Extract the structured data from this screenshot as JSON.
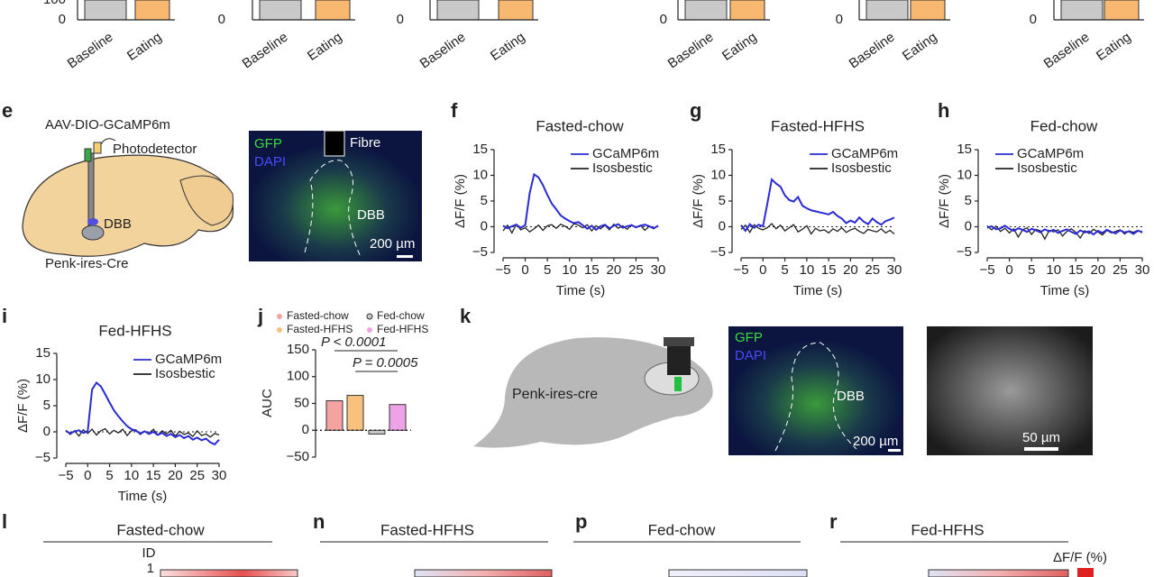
{
  "top_row": {
    "tick_zero": "0",
    "tick_top": "100",
    "categories": [
      "Baseline",
      "Eating"
    ]
  },
  "panel_e": {
    "letter": "e",
    "virus": "AAV-DIO-GCaMP6m",
    "detector": "Photodetector",
    "region": "DBB",
    "mouse": "Penk-ires-Cre",
    "image": {
      "gfp": "GFP",
      "dapi": "DAPI",
      "fibre": "Fibre",
      "region": "DBB",
      "scale": "200 µm"
    }
  },
  "trace_axes": {
    "ylabel": "ΔF/F (%)",
    "xlabel": "Time (s)",
    "xlim": [
      -5,
      30
    ],
    "ylim": [
      -5,
      15
    ],
    "xticks": [
      {
        "value": -5,
        "label": "−5"
      },
      0,
      5,
      10,
      15,
      20,
      25,
      30
    ],
    "yticks": [
      15,
      10,
      5,
      0,
      {
        "value": -5,
        "label": "−5"
      }
    ],
    "x": [
      -5,
      -4,
      -3,
      -2,
      -1,
      0,
      1,
      2,
      3,
      4,
      5,
      6,
      7,
      8,
      9,
      10,
      11,
      12,
      13,
      14,
      15,
      16,
      17,
      18,
      19,
      20,
      21,
      22,
      23,
      24,
      25,
      26,
      27,
      28,
      29,
      30
    ]
  },
  "traces": [
    {
      "letter": "f",
      "title": "Fasted-chow",
      "series": [
        {
          "name": "GCaMP6m",
          "color": "#2b2bd6",
          "values": [
            0.2,
            -0.3,
            0.1,
            0.4,
            -0.2,
            0.3,
            6.5,
            10.2,
            9.6,
            8.1,
            6.2,
            4.5,
            3.4,
            2.2,
            1.6,
            1.1,
            0.7,
            0.9,
            0.3,
            -0.4,
            0.2,
            -0.6,
            0.1,
            0.4,
            -0.3,
            0.2,
            0.5,
            -0.2,
            0.1,
            0.3,
            -0.1,
            0.2,
            0.4,
            0.1,
            -0.3,
            0.2
          ]
        },
        {
          "name": "Isosbestic",
          "color": "#222222",
          "values": [
            -0.8,
            0.3,
            -1.2,
            0.5,
            -0.6,
            -0.2,
            -1.0,
            -0.4,
            0.3,
            -0.7,
            0.2,
            0.4,
            -0.3,
            0.5,
            0.1,
            -0.5,
            0.6,
            0.3,
            -0.2,
            0.4,
            -0.8,
            0.2,
            -0.4,
            0.3,
            -0.6,
            0.5,
            -0.3,
            0.2,
            -0.5,
            0.4,
            -0.2,
            0.3,
            -0.7,
            0.1,
            -0.4,
            0.2
          ]
        }
      ]
    },
    {
      "letter": "g",
      "title": "Fasted-HFHS",
      "series": [
        {
          "name": "GCaMP6m",
          "color": "#2b2bd6",
          "values": [
            0.3,
            -0.8,
            0.5,
            -0.2,
            0.4,
            0.1,
            4.5,
            9.2,
            8.4,
            7.8,
            6.1,
            5.2,
            4.9,
            5.8,
            4.1,
            3.6,
            3.2,
            3.0,
            2.8,
            2.6,
            2.4,
            2.9,
            2.1,
            1.6,
            0.7,
            1.2,
            0.8,
            1.8,
            1.0,
            0.5,
            1.6,
            0.9,
            0.4,
            1.1,
            1.4,
            1.8
          ]
        },
        {
          "name": "Isosbestic",
          "color": "#222222",
          "values": [
            -0.5,
            0.3,
            -1.1,
            0.4,
            -0.3,
            -0.6,
            -0.2,
            0.6,
            -0.4,
            0.3,
            -0.8,
            -0.2,
            0.4,
            -1.0,
            -0.5,
            0.2,
            -1.4,
            -0.3,
            -0.8,
            -0.6,
            -1.2,
            -0.4,
            -0.9,
            -0.2,
            -1.1,
            -0.6,
            -0.3,
            -0.9,
            -1.3,
            -0.5,
            -0.8,
            -1.0,
            -0.4,
            -1.2,
            -0.7,
            -1.4
          ]
        }
      ]
    },
    {
      "letter": "h",
      "title": "Fed-chow",
      "series": [
        {
          "name": "GCaMP6m",
          "color": "#2b2bd6",
          "values": [
            -0.2,
            0.1,
            -0.5,
            -0.3,
            0.2,
            -0.4,
            -0.8,
            -0.3,
            -0.6,
            -1.0,
            -0.4,
            -0.7,
            -1.1,
            -0.5,
            -0.9,
            -0.6,
            -1.2,
            -0.8,
            -0.5,
            -1.0,
            -1.4,
            -0.7,
            -1.1,
            -0.9,
            -1.5,
            -0.8,
            -1.2,
            -0.6,
            -1.0,
            -1.3,
            -0.7,
            -1.1,
            -0.9,
            -1.4,
            -0.8,
            -1.0
          ]
        },
        {
          "name": "Isosbestic",
          "color": "#222222",
          "values": [
            0.2,
            -0.6,
            0.1,
            -0.9,
            -0.3,
            -1.2,
            -0.4,
            -2.0,
            -0.6,
            -0.2,
            -1.5,
            -0.5,
            -0.8,
            -2.4,
            -0.7,
            -1.0,
            -0.6,
            -1.8,
            -0.9,
            -0.4,
            -1.1,
            -2.2,
            -0.8,
            -1.3,
            -0.5,
            -1.0,
            -1.6,
            -0.7,
            -1.2,
            -0.9,
            -0.6,
            -1.4,
            -0.8,
            -1.1,
            -0.7,
            -1.2
          ]
        }
      ]
    },
    {
      "letter": "i",
      "title": "Fed-HFHS",
      "series": [
        {
          "name": "GCaMP6m",
          "color": "#2b2bd6",
          "values": [
            0.2,
            -0.3,
            0.1,
            0.3,
            -0.2,
            0.1,
            8.1,
            9.4,
            8.7,
            7.2,
            5.6,
            4.1,
            3.0,
            2.0,
            1.1,
            0.5,
            0.2,
            -0.3,
            0.1,
            -0.4,
            0.0,
            -0.6,
            -0.2,
            -0.8,
            -0.4,
            -1.0,
            -0.6,
            -1.2,
            -0.8,
            -1.5,
            -1.1,
            -1.6,
            -1.3,
            -2.0,
            -2.4,
            -1.5
          ]
        },
        {
          "name": "Isosbestic",
          "color": "#222222",
          "values": [
            0.3,
            -0.5,
            0.2,
            -0.8,
            0.4,
            -0.3,
            0.5,
            -0.6,
            0.2,
            0.6,
            -0.4,
            0.3,
            -0.2,
            0.5,
            -0.7,
            0.2,
            0.4,
            -0.5,
            0.1,
            -0.3,
            0.5,
            -0.6,
            0.2,
            -0.4,
            0.3,
            -0.8,
            0.1,
            -0.5,
            -0.2,
            -0.9,
            0.2,
            -0.7,
            -0.4,
            -1.0,
            -0.3,
            -0.6
          ]
        }
      ]
    }
  ],
  "panel_j": {
    "letter": "j",
    "ylabel": "AUC",
    "ylim": [
      -50,
      150
    ],
    "yticks": [
      150,
      100,
      50,
      0,
      {
        "value": -50,
        "label": "−50"
      }
    ],
    "names": [
      "Fasted-chow",
      "Fasted-HFHS",
      "Fed-chow",
      "Fed-HFHS"
    ],
    "colors": [
      "#f4a3a0",
      "#f8c17e",
      "#c9c9c9",
      "#eea3e6"
    ],
    "values": [
      55,
      65,
      -7,
      48
    ],
    "annotations": [
      "P < 0.0001",
      "P = 0.0005"
    ]
  },
  "panel_k": {
    "letter": "k",
    "mouse": "Penk-ires-cre",
    "image": {
      "gfp": "GFP",
      "dapi": "DAPI",
      "region": "DBB",
      "scale": "200 µm"
    },
    "image2_scale": "50 µm"
  },
  "heatmaps": [
    {
      "letter": "l",
      "title": "Fasted-chow"
    },
    {
      "letter": "n",
      "title": "Fasted-HFHS"
    },
    {
      "letter": "p",
      "title": "Fed-chow"
    },
    {
      "letter": "r",
      "title": "Fed-HFHS"
    }
  ],
  "heatmap_axis": {
    "ylabel": "ID",
    "first_id": "1",
    "colorbar_label": "ΔF/F (%)"
  }
}
